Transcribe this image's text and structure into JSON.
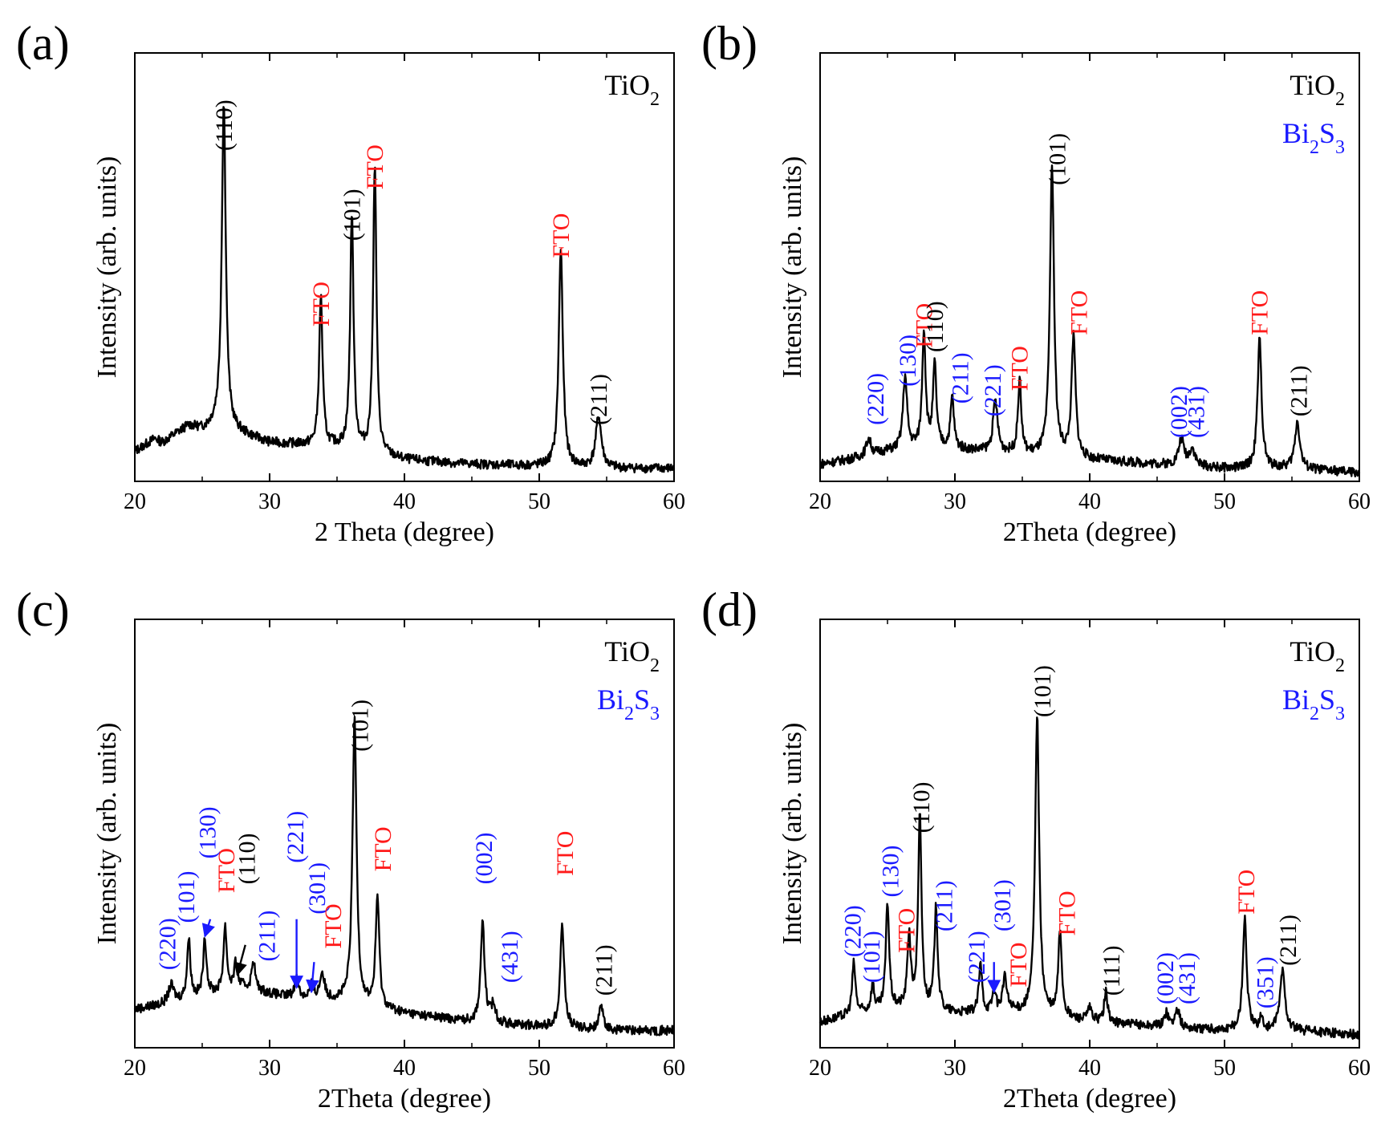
{
  "colors": {
    "black": "#000000",
    "tio2": "#000000",
    "bi2s3": "#1a1aff",
    "fto": "#ff1a1a"
  },
  "chart_data": [
    {
      "type": "line",
      "panel_label": "(a)",
      "xlabel": "2 Theta (degree)",
      "ylabel": "Intensity (arb. units)",
      "xlim": [
        20,
        60
      ],
      "ylim": [
        0,
        100
      ],
      "xticks": [
        "20",
        "30",
        "40",
        "50",
        "60"
      ],
      "legend": [
        {
          "text": "TiO",
          "sub": "2",
          "color": "#000000"
        }
      ],
      "baseline": [
        [
          20,
          7
        ],
        [
          21.5,
          10
        ],
        [
          22,
          9
        ],
        [
          23,
          11
        ],
        [
          24,
          13
        ],
        [
          25,
          12
        ],
        [
          26,
          13
        ],
        [
          30,
          9
        ],
        [
          35,
          8
        ],
        [
          40,
          5
        ],
        [
          45,
          4
        ],
        [
          50,
          3.5
        ],
        [
          55,
          3
        ],
        [
          60,
          3
        ]
      ],
      "peaks": [
        {
          "x": 26.6,
          "h": 76,
          "w": 0.18
        },
        {
          "x": 33.8,
          "h": 35,
          "w": 0.15
        },
        {
          "x": 36.1,
          "h": 55,
          "w": 0.15
        },
        {
          "x": 37.8,
          "h": 67,
          "w": 0.15
        },
        {
          "x": 51.6,
          "h": 51,
          "w": 0.18
        },
        {
          "x": 54.4,
          "h": 12,
          "w": 0.25
        }
      ],
      "labels": [
        {
          "text": "(110)",
          "x": 26.6,
          "h": 76,
          "cls": "tio2"
        },
        {
          "text": "FTO",
          "x": 33.8,
          "h": 35,
          "cls": "fto"
        },
        {
          "text": "(101)",
          "x": 36.1,
          "h": 55,
          "cls": "tio2"
        },
        {
          "text": "FTO",
          "x": 37.8,
          "h": 67,
          "cls": "fto"
        },
        {
          "text": "FTO",
          "x": 51.6,
          "h": 51,
          "cls": "fto"
        },
        {
          "text": "(211)",
          "x": 54.4,
          "h": 12,
          "cls": "tio2"
        }
      ]
    },
    {
      "type": "line",
      "panel_label": "(b)",
      "xlabel": "2Theta (degree)",
      "ylabel": "Intensity (arb. units)",
      "xlim": [
        20,
        60
      ],
      "ylim": [
        0,
        100
      ],
      "xticks": [
        "20",
        "30",
        "40",
        "50",
        "60"
      ],
      "legend": [
        {
          "text": "TiO",
          "sub": "2",
          "color": "#000000"
        },
        {
          "text": "Bi",
          "sub": "2",
          "text2": "S",
          "sub2": "3",
          "color": "#1a1aff"
        }
      ],
      "baseline": [
        [
          20,
          4
        ],
        [
          22,
          5
        ],
        [
          25,
          7
        ],
        [
          28,
          8
        ],
        [
          32,
          7
        ],
        [
          36,
          6
        ],
        [
          40,
          5
        ],
        [
          45,
          4
        ],
        [
          50,
          3
        ],
        [
          55,
          3
        ],
        [
          60,
          2
        ]
      ],
      "peaks": [
        {
          "x": 23.6,
          "h": 4,
          "w": 0.2
        },
        {
          "x": 26.3,
          "h": 17,
          "w": 0.18
        },
        {
          "x": 27.7,
          "h": 27,
          "w": 0.15
        },
        {
          "x": 28.5,
          "h": 19,
          "w": 0.15
        },
        {
          "x": 29.8,
          "h": 12,
          "w": 0.15
        },
        {
          "x": 33.0,
          "h": 12,
          "w": 0.2
        },
        {
          "x": 34.8,
          "h": 17,
          "w": 0.15
        },
        {
          "x": 37.2,
          "h": 68,
          "w": 0.18
        },
        {
          "x": 38.8,
          "h": 28,
          "w": 0.18
        },
        {
          "x": 46.8,
          "h": 6,
          "w": 0.25
        },
        {
          "x": 47.6,
          "h": 4,
          "w": 0.25
        },
        {
          "x": 52.6,
          "h": 30,
          "w": 0.18
        },
        {
          "x": 55.4,
          "h": 11,
          "w": 0.22
        }
      ],
      "labels": [
        {
          "text": "(220)",
          "x": 24.1,
          "h": 12,
          "cls": "bi2s3"
        },
        {
          "text": "(130)",
          "x": 26.5,
          "h": 21,
          "cls": "bi2s3"
        },
        {
          "text": "FTO",
          "x": 27.7,
          "h": 30,
          "cls": "fto"
        },
        {
          "text": "(110)",
          "x": 28.5,
          "h": 29,
          "cls": "tio2"
        },
        {
          "text": "(211)",
          "x": 30.4,
          "h": 17,
          "cls": "bi2s3"
        },
        {
          "text": "(221)",
          "x": 32.8,
          "h": 14,
          "cls": "bi2s3"
        },
        {
          "text": "FTO",
          "x": 34.8,
          "h": 20,
          "cls": "fto"
        },
        {
          "text": "(101)",
          "x": 37.6,
          "h": 68,
          "cls": "tio2"
        },
        {
          "text": "FTO",
          "x": 39.2,
          "h": 33,
          "cls": "fto"
        },
        {
          "text": "(002)",
          "x": 46.6,
          "h": 9,
          "cls": "bi2s3"
        },
        {
          "text": "(431)",
          "x": 47.9,
          "h": 9,
          "cls": "bi2s3"
        },
        {
          "text": "FTO",
          "x": 52.6,
          "h": 33,
          "cls": "fto"
        },
        {
          "text": "(211)",
          "x": 55.5,
          "h": 14,
          "cls": "tio2"
        }
      ]
    },
    {
      "type": "line",
      "panel_label": "(c)",
      "xlabel": "2Theta (degree)",
      "ylabel": "Intensity (arb. units)",
      "xlim": [
        20,
        60
      ],
      "ylim": [
        0,
        100
      ],
      "xticks": [
        "20",
        "30",
        "40",
        "50",
        "60"
      ],
      "legend": [
        {
          "text": "TiO",
          "sub": "2",
          "color": "#000000"
        },
        {
          "text": "Bi",
          "sub": "2",
          "text2": "S",
          "sub2": "3",
          "color": "#1a1aff"
        }
      ],
      "baseline": [
        [
          20,
          9
        ],
        [
          22,
          10
        ],
        [
          25,
          12
        ],
        [
          28,
          14
        ],
        [
          31,
          12
        ],
        [
          35,
          11
        ],
        [
          40,
          8
        ],
        [
          45,
          6
        ],
        [
          50,
          5
        ],
        [
          55,
          4
        ],
        [
          60,
          4
        ]
      ],
      "peaks": [
        {
          "x": 22.7,
          "h": 4,
          "w": 0.25
        },
        {
          "x": 24.0,
          "h": 14,
          "w": 0.15
        },
        {
          "x": 25.2,
          "h": 13,
          "w": 0.15
        },
        {
          "x": 26.7,
          "h": 15,
          "w": 0.15
        },
        {
          "x": 27.5,
          "h": 6,
          "w": 0.15
        },
        {
          "x": 28.8,
          "h": 7,
          "w": 0.15
        },
        {
          "x": 32.0,
          "h": 5,
          "w": 0.15
        },
        {
          "x": 33.1,
          "h": 3,
          "w": 0.15
        },
        {
          "x": 33.9,
          "h": 6,
          "w": 0.2
        },
        {
          "x": 36.3,
          "h": 66,
          "w": 0.18
        },
        {
          "x": 38.0,
          "h": 26,
          "w": 0.16
        },
        {
          "x": 45.8,
          "h": 23,
          "w": 0.18
        },
        {
          "x": 46.6,
          "h": 4,
          "w": 0.2
        },
        {
          "x": 51.7,
          "h": 24,
          "w": 0.18
        },
        {
          "x": 54.6,
          "h": 5,
          "w": 0.22
        }
      ],
      "labels": [
        {
          "text": "(220)",
          "x": 22.4,
          "h": 17,
          "cls": "bi2s3"
        },
        {
          "text": "(101)",
          "x": 23.8,
          "h": 28,
          "cls": "bi2s3"
        },
        {
          "text": "(130)",
          "x": 25.4,
          "h": 43,
          "cls": "bi2s3"
        },
        {
          "text": "FTO",
          "x": 26.8,
          "h": 35,
          "cls": "fto"
        },
        {
          "text": "(110)",
          "x": 28.3,
          "h": 37,
          "cls": "tio2"
        },
        {
          "text": "(211)",
          "x": 29.8,
          "h": 19,
          "cls": "bi2s3"
        },
        {
          "text": "(221)",
          "x": 31.9,
          "h": 42,
          "cls": "bi2s3"
        },
        {
          "text": "(301)",
          "x": 33.5,
          "h": 30,
          "cls": "bi2s3"
        },
        {
          "text": "FTO",
          "x": 34.7,
          "h": 22,
          "cls": "fto"
        },
        {
          "text": "(101)",
          "x": 36.7,
          "h": 68,
          "cls": "tio2"
        },
        {
          "text": "FTO",
          "x": 38.4,
          "h": 40,
          "cls": "fto"
        },
        {
          "text": "(002)",
          "x": 45.9,
          "h": 37,
          "cls": "bi2s3"
        },
        {
          "text": "(431)",
          "x": 47.8,
          "h": 14,
          "cls": "bi2s3"
        },
        {
          "text": "FTO",
          "x": 51.9,
          "h": 39,
          "cls": "fto"
        },
        {
          "text": "(211)",
          "x": 54.8,
          "h": 11,
          "cls": "tio2"
        }
      ],
      "arrows": [
        {
          "from_x": 25.6,
          "from_h": 30,
          "to_x": 25.2,
          "to_h": 26,
          "cls": "bi2s3"
        },
        {
          "from_x": 28.2,
          "from_h": 24,
          "to_x": 27.6,
          "to_h": 17,
          "cls": "tio2"
        },
        {
          "from_x": 32.0,
          "from_h": 30,
          "to_x": 32.0,
          "to_h": 14,
          "cls": "bi2s3"
        },
        {
          "from_x": 33.3,
          "from_h": 20,
          "to_x": 33.1,
          "to_h": 13,
          "cls": "bi2s3"
        }
      ]
    },
    {
      "type": "line",
      "panel_label": "(d)",
      "xlabel": "2Theta (degree)",
      "ylabel": "Intensity (arb. units)",
      "xlim": [
        20,
        60
      ],
      "ylim": [
        0,
        100
      ],
      "xticks": [
        "20",
        "30",
        "40",
        "50",
        "60"
      ],
      "legend": [
        {
          "text": "TiO",
          "sub": "2",
          "color": "#000000"
        },
        {
          "text": "Bi",
          "sub": "2",
          "text2": "S",
          "sub2": "3",
          "color": "#1a1aff"
        }
      ],
      "baseline": [
        [
          20,
          6
        ],
        [
          23,
          8
        ],
        [
          26,
          9
        ],
        [
          30,
          8
        ],
        [
          35,
          8
        ],
        [
          40,
          6
        ],
        [
          45,
          5
        ],
        [
          50,
          4
        ],
        [
          55,
          4
        ],
        [
          60,
          3
        ]
      ],
      "peaks": [
        {
          "x": 22.5,
          "h": 12,
          "w": 0.15
        },
        {
          "x": 23.9,
          "h": 6,
          "w": 0.15
        },
        {
          "x": 25.0,
          "h": 25,
          "w": 0.15
        },
        {
          "x": 26.6,
          "h": 17,
          "w": 0.15
        },
        {
          "x": 27.4,
          "h": 45,
          "w": 0.15
        },
        {
          "x": 28.6,
          "h": 24,
          "w": 0.15
        },
        {
          "x": 31.9,
          "h": 11,
          "w": 0.15
        },
        {
          "x": 32.9,
          "h": 5,
          "w": 0.15
        },
        {
          "x": 33.7,
          "h": 8,
          "w": 0.2
        },
        {
          "x": 36.1,
          "h": 70,
          "w": 0.18
        },
        {
          "x": 37.8,
          "h": 20,
          "w": 0.16
        },
        {
          "x": 40.0,
          "h": 3,
          "w": 0.2
        },
        {
          "x": 41.2,
          "h": 7,
          "w": 0.16
        },
        {
          "x": 45.7,
          "h": 3,
          "w": 0.2
        },
        {
          "x": 46.5,
          "h": 4,
          "w": 0.2
        },
        {
          "x": 51.5,
          "h": 26,
          "w": 0.18
        },
        {
          "x": 52.7,
          "h": 3,
          "w": 0.15
        },
        {
          "x": 54.3,
          "h": 14,
          "w": 0.22
        }
      ],
      "labels": [
        {
          "text": "(220)",
          "x": 22.4,
          "h": 20,
          "cls": "bi2s3"
        },
        {
          "text": "(101)",
          "x": 23.8,
          "h": 14,
          "cls": "bi2s3"
        },
        {
          "text": "(130)",
          "x": 25.2,
          "h": 34,
          "cls": "bi2s3"
        },
        {
          "text": "FTO",
          "x": 26.4,
          "h": 21,
          "cls": "fto"
        },
        {
          "text": "(110)",
          "x": 27.5,
          "h": 49,
          "cls": "tio2"
        },
        {
          "text": "(211)",
          "x": 29.2,
          "h": 26,
          "cls": "bi2s3"
        },
        {
          "text": "(221)",
          "x": 31.6,
          "h": 14,
          "cls": "bi2s3"
        },
        {
          "text": "(301)",
          "x": 33.5,
          "h": 26,
          "cls": "bi2s3"
        },
        {
          "text": "FTO",
          "x": 34.7,
          "h": 13,
          "cls": "fto"
        },
        {
          "text": "(101)",
          "x": 36.5,
          "h": 76,
          "cls": "tio2"
        },
        {
          "text": "FTO",
          "x": 38.3,
          "h": 25,
          "cls": "fto"
        },
        {
          "text": "(111)",
          "x": 41.6,
          "h": 11,
          "cls": "tio2"
        },
        {
          "text": "(002)",
          "x": 45.6,
          "h": 9,
          "cls": "bi2s3"
        },
        {
          "text": "(431)",
          "x": 47.2,
          "h": 9,
          "cls": "bi2s3"
        },
        {
          "text": "FTO",
          "x": 51.6,
          "h": 30,
          "cls": "fto"
        },
        {
          "text": "(351)",
          "x": 53.0,
          "h": 8,
          "cls": "bi2s3"
        },
        {
          "text": "(211)",
          "x": 54.7,
          "h": 18,
          "cls": "tio2"
        }
      ],
      "arrows": [
        {
          "from_x": 32.9,
          "from_h": 20,
          "to_x": 32.9,
          "to_h": 13,
          "cls": "bi2s3"
        }
      ]
    }
  ]
}
